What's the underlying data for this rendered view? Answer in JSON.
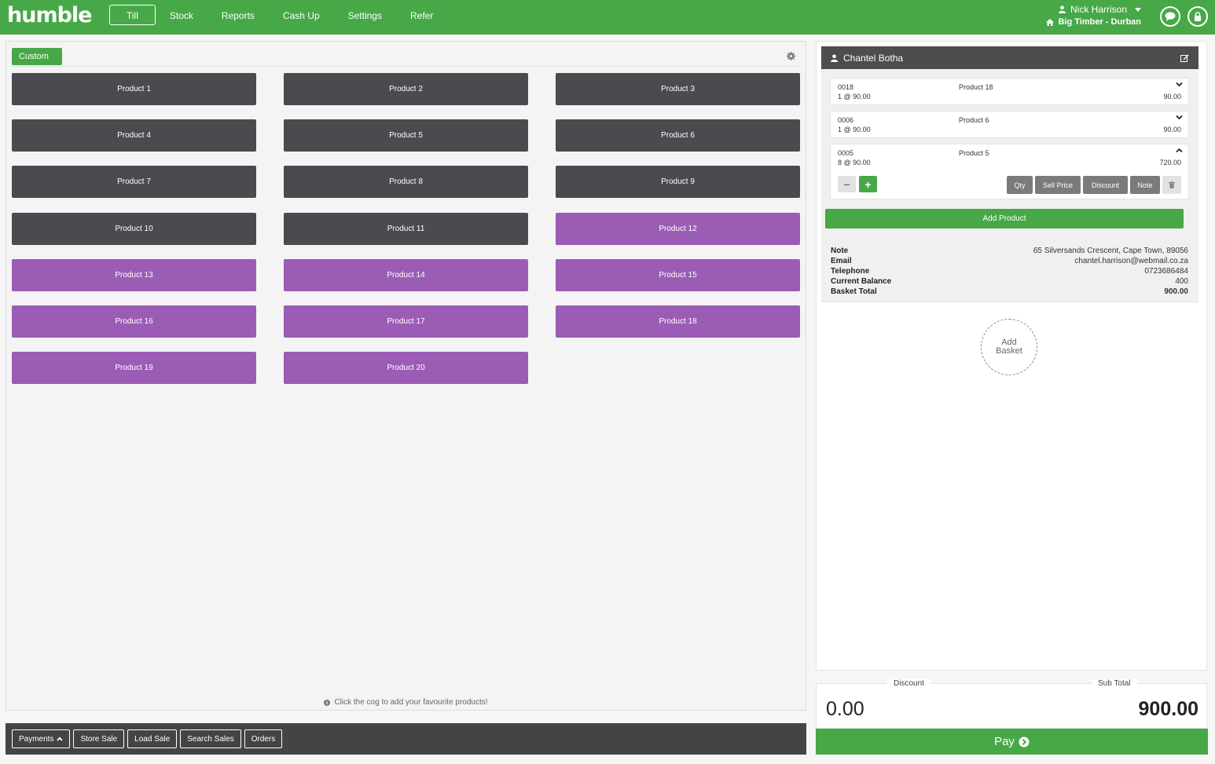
{
  "header": {
    "logo": "humble",
    "nav": [
      {
        "label": "Till",
        "active": true
      },
      {
        "label": "Stock"
      },
      {
        "label": "Reports"
      },
      {
        "label": "Cash Up"
      },
      {
        "label": "Settings"
      },
      {
        "label": "Refer"
      }
    ],
    "user_name": "Nick Harrison",
    "store_name": "Big Timber - Durban"
  },
  "products": {
    "custom_label": "Custom",
    "items": [
      "Product 1",
      "Product 2",
      "Product 3",
      "Product 4",
      "Product 5",
      "Product 6",
      "Product 7",
      "Product 8",
      "Product 9",
      "Product 10",
      "Product 11",
      "Product 12",
      "Product 13",
      "Product 14",
      "Product 15",
      "Product 16",
      "Product 17",
      "Product 18",
      "Product 19",
      "Product 20"
    ],
    "hint": "Click the cog to add your favourite products!"
  },
  "bottom_bar": {
    "payments": "Payments",
    "store_sale": "Store Sale",
    "load_sale": "Load Sale",
    "search_sales": "Search Sales",
    "orders": "Orders"
  },
  "basket": {
    "customer_name": "Chantel Botha",
    "lines": [
      {
        "code": "0018",
        "name": "Product 18",
        "qty": "1 @ 90.00",
        "total": "90.00"
      },
      {
        "code": "0006",
        "name": "Product 6",
        "qty": "1 @ 90.00",
        "total": "90.00"
      },
      {
        "code": "0005",
        "name": "Product 5",
        "qty": "8 @ 90.00",
        "total": "720.00"
      }
    ],
    "actions": {
      "qty": "Qty",
      "sell_price": "Sell Price",
      "discount": "Discount",
      "note": "Note"
    },
    "add_product": "Add Product",
    "info": [
      {
        "key": "Note",
        "value": "65 Silversands Crescent, Cape Town, 89056"
      },
      {
        "key": "Email",
        "value": "chantel.harrison@webmail.co.za"
      },
      {
        "key": "Telephone",
        "value": "0723686484"
      },
      {
        "key": "Current Balance",
        "value": "400"
      },
      {
        "key": "Basket Total",
        "value": "900.00"
      }
    ],
    "add_basket_line1": "Add",
    "add_basket_line2": "Basket"
  },
  "totals": {
    "discount_label": "Discount",
    "discount_value": "0.00",
    "subtotal_label": "Sub Total",
    "subtotal_value": "900.00",
    "pay_label": "Pay"
  },
  "colors": {
    "brand_green": "#47a847",
    "dark_tile": "#4a4b4f",
    "purple_tile": "#9b5cb6"
  }
}
